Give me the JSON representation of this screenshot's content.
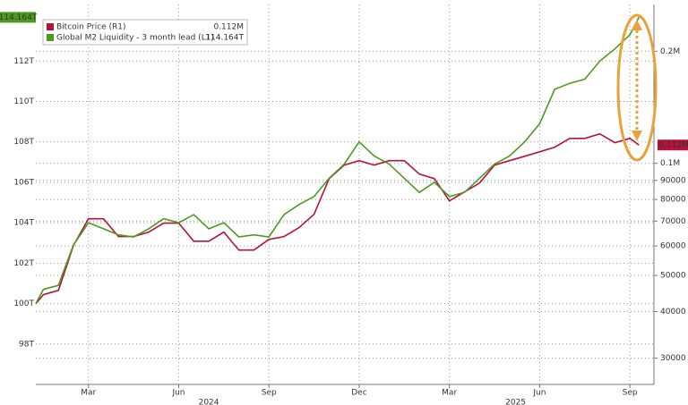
{
  "chart_data": {
    "type": "line",
    "series": [
      {
        "name": "Bitcoin Price (R1)",
        "color": "#b3133c",
        "axis": "y2",
        "values": [
          42000,
          44400,
          45600,
          60200,
          71000,
          71000,
          63600,
          63600,
          65400,
          69100,
          69100,
          61800,
          61800,
          65400,
          58500,
          58500,
          62500,
          63600,
          67200,
          73000,
          91000,
          98900,
          101700,
          98900,
          101700,
          101700,
          93600,
          91000,
          79300,
          83800,
          88500,
          98900,
          101700,
          104500,
          107400,
          110500,
          116700,
          116700,
          120000,
          113600,
          116700,
          112000
        ],
        "value_labels": [
          null,
          null,
          null,
          null,
          null,
          null,
          null,
          null,
          null,
          null,
          null,
          null,
          null,
          null,
          null,
          null,
          null,
          null,
          null,
          null,
          null,
          null,
          null,
          null,
          null,
          null,
          null,
          null,
          null,
          null,
          null,
          null,
          null,
          null,
          null,
          null,
          null,
          null,
          null,
          null,
          null,
          "0.112M"
        ]
      },
      {
        "name": "Global M2 Liquidity - 3 month lead (L1)",
        "color": "#4c9a1f",
        "values": [
          100.0,
          100.7,
          100.9,
          102.9,
          104.0,
          103.7,
          103.4,
          103.3,
          103.7,
          104.2,
          104.0,
          104.4,
          103.7,
          104.0,
          103.3,
          103.4,
          103.3,
          104.4,
          104.9,
          105.3,
          106.2,
          106.9,
          108.0,
          107.3,
          106.9,
          106.2,
          105.5,
          106.0,
          105.3,
          105.5,
          106.2,
          106.9,
          107.3,
          108.0,
          108.9,
          110.6,
          110.9,
          111.1,
          112.0,
          112.6,
          113.3,
          114.164
        ],
        "value_labels": [
          null,
          null,
          null,
          null,
          null,
          null,
          null,
          null,
          null,
          null,
          null,
          null,
          null,
          null,
          null,
          null,
          null,
          null,
          null,
          null,
          null,
          null,
          null,
          null,
          null,
          null,
          null,
          null,
          null,
          null,
          null,
          null,
          null,
          null,
          null,
          null,
          null,
          null,
          null,
          null,
          null,
          "114.164T"
        ]
      }
    ],
    "x": [
      1.25,
      1.5,
      2,
      2.5,
      3,
      3.5,
      4,
      4.5,
      5,
      5.5,
      6,
      6.5,
      7,
      7.5,
      8,
      8.5,
      9,
      9.5,
      10,
      10.5,
      11,
      11.5,
      12,
      12.5,
      13,
      13.5,
      14,
      14.5,
      15,
      15.5,
      16,
      16.5,
      17,
      17.5,
      18,
      18.5,
      19,
      19.5,
      20,
      20.5,
      21,
      21.3
    ],
    "xlim": [
      1.25,
      21.8
    ],
    "xticks": [
      {
        "value": 3,
        "label": "Mar"
      },
      {
        "value": 6,
        "label": "Jun"
      },
      {
        "value": 9,
        "label": "Sep"
      },
      {
        "value": 12,
        "label": "Dec"
      },
      {
        "value": 15,
        "label": "Mar"
      },
      {
        "value": 18,
        "label": "Jun"
      },
      {
        "value": 21,
        "label": "Sep"
      }
    ],
    "x_year_labels": [
      {
        "value": 7,
        "label": "2024"
      },
      {
        "value": 17.2,
        "label": "2025"
      }
    ],
    "ylim": [
      96,
      114.8
    ],
    "yticks": [
      {
        "value": 98,
        "label": "98T"
      },
      {
        "value": 100,
        "label": "100T"
      },
      {
        "value": 102,
        "label": "102T"
      },
      {
        "value": 104,
        "label": "104T"
      },
      {
        "value": 106,
        "label": "106T"
      },
      {
        "value": 108,
        "label": "108T"
      },
      {
        "value": 110,
        "label": "110T"
      },
      {
        "value": 112,
        "label": "112T"
      }
    ],
    "y2lim": [
      25500,
      267000
    ],
    "y2_log": true,
    "y2ticks": [
      30000,
      40000,
      50000,
      60000,
      70000,
      80000,
      90000,
      {
        "value": 100000,
        "label": "0.1M"
      },
      {
        "value": 200000,
        "label": "0.2M"
      }
    ],
    "grid": true
  }
}
